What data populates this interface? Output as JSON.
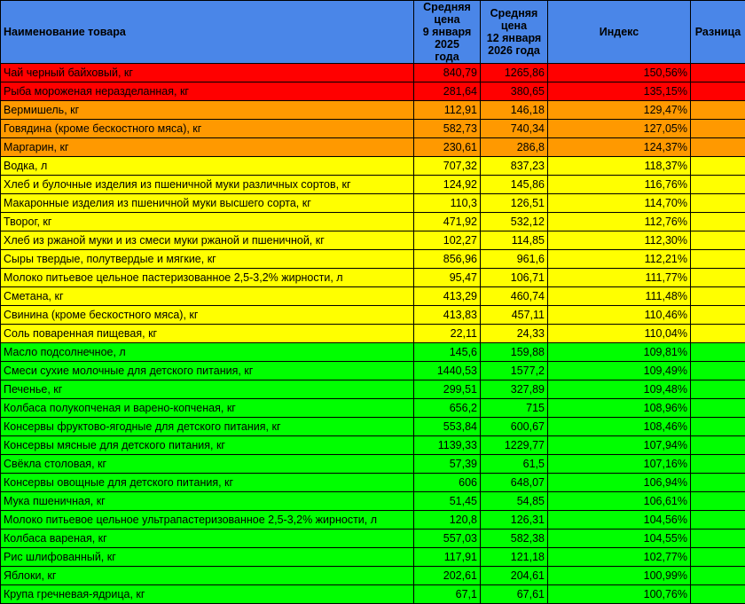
{
  "table": {
    "header": [
      "Наименование товара",
      "Средняя цена\n9 января 2025\nгода",
      "Средняя цена\n12 января\n2026 года",
      "Индекс",
      "Разница"
    ],
    "rows": [
      {
        "color": "#ff0000",
        "cells": [
          "Чай черный байховый, кг",
          "840,79",
          "1265,86",
          "150,56%"
        ]
      },
      {
        "color": "#ff0000",
        "cells": [
          "Рыба мороженая неразделанная, кг",
          "281,64",
          "380,65",
          "135,15%"
        ]
      },
      {
        "color": "#ff9900",
        "cells": [
          "Вермишель, кг",
          "112,91",
          "146,18",
          "129,47%"
        ]
      },
      {
        "color": "#ff9900",
        "cells": [
          "Говядина (кроме бескостного мяса), кг",
          "582,73",
          "740,34",
          "127,05%"
        ]
      },
      {
        "color": "#ff9900",
        "cells": [
          "Маргарин, кг",
          "230,61",
          "286,8",
          "124,37%"
        ]
      },
      {
        "color": "#ffff00",
        "cells": [
          "Водка, л",
          "707,32",
          "837,23",
          "118,37%"
        ]
      },
      {
        "color": "#ffff00",
        "cells": [
          "Хлеб и булочные изделия из пшеничной муки различных сортов, кг",
          "124,92",
          "145,86",
          "116,76%"
        ]
      },
      {
        "color": "#ffff00",
        "cells": [
          "Макаронные изделия из пшеничной муки высшего сорта, кг",
          "110,3",
          "126,51",
          "114,70%"
        ]
      },
      {
        "color": "#ffff00",
        "cells": [
          "Творог, кг",
          "471,92",
          "532,12",
          "112,76%"
        ]
      },
      {
        "color": "#ffff00",
        "cells": [
          "Хлеб из ржаной муки и из смеси муки ржаной и пшеничной, кг",
          "102,27",
          "114,85",
          "112,30%"
        ]
      },
      {
        "color": "#ffff00",
        "cells": [
          "Сыры твердые, полутвердые и мягкие, кг",
          "856,96",
          "961,6",
          "112,21%"
        ]
      },
      {
        "color": "#ffff00",
        "cells": [
          "Молоко питьевое цельное пастеризованное 2,5-3,2% жирности, л",
          "95,47",
          "106,71",
          "111,77%"
        ]
      },
      {
        "color": "#ffff00",
        "cells": [
          "Сметана, кг",
          "413,29",
          "460,74",
          "111,48%"
        ]
      },
      {
        "color": "#ffff00",
        "cells": [
          "Свинина (кроме бескостного мяса), кг",
          "413,83",
          "457,11",
          "110,46%"
        ]
      },
      {
        "color": "#ffff00",
        "cells": [
          "Соль поваренная пищевая, кг",
          "22,11",
          "24,33",
          "110,04%"
        ]
      },
      {
        "color": "#00ff00",
        "cells": [
          "Масло подсолнечное, л",
          "145,6",
          "159,88",
          "109,81%"
        ]
      },
      {
        "color": "#00ff00",
        "cells": [
          "Смеси сухие молочные для детского питания, кг",
          "1440,53",
          "1577,2",
          "109,49%"
        ]
      },
      {
        "color": "#00ff00",
        "cells": [
          "Печенье, кг",
          "299,51",
          "327,89",
          "109,48%"
        ]
      },
      {
        "color": "#00ff00",
        "cells": [
          "Колбаса полукопченая и варено-копченая, кг",
          "656,2",
          "715",
          "108,96%"
        ]
      },
      {
        "color": "#00ff00",
        "cells": [
          "Консервы фруктово-ягодные для детского питания, кг",
          "553,84",
          "600,67",
          "108,46%"
        ]
      },
      {
        "color": "#00ff00",
        "cells": [
          "Консервы мясные для детского питания, кг",
          "1139,33",
          "1229,77",
          "107,94%"
        ]
      },
      {
        "color": "#00ff00",
        "cells": [
          "Свёкла столовая, кг",
          "57,39",
          "61,5",
          "107,16%"
        ]
      },
      {
        "color": "#00ff00",
        "cells": [
          "Консервы овощные для детского питания, кг",
          "606",
          "648,07",
          "106,94%"
        ]
      },
      {
        "color": "#00ff00",
        "cells": [
          "Мука пшеничная, кг",
          "51,45",
          "54,85",
          "106,61%"
        ]
      },
      {
        "color": "#00ff00",
        "cells": [
          "Молоко питьевое цельное ультрапастеризованное 2,5-3,2% жирности, л",
          "120,8",
          "126,31",
          "104,56%"
        ]
      },
      {
        "color": "#00ff00",
        "cells": [
          "Колбаса вареная, кг",
          "557,03",
          "582,38",
          "104,55%"
        ]
      },
      {
        "color": "#00ff00",
        "cells": [
          "Рис шлифованный, кг",
          "117,91",
          "121,18",
          "102,77%"
        ]
      },
      {
        "color": "#00ff00",
        "cells": [
          "Яблоки, кг",
          "202,61",
          "204,61",
          "100,99%"
        ]
      },
      {
        "color": "#00ff00",
        "cells": [
          "Крупа гречневая-ядрица, кг",
          "67,1",
          "67,61",
          "100,76%"
        ]
      }
    ]
  }
}
